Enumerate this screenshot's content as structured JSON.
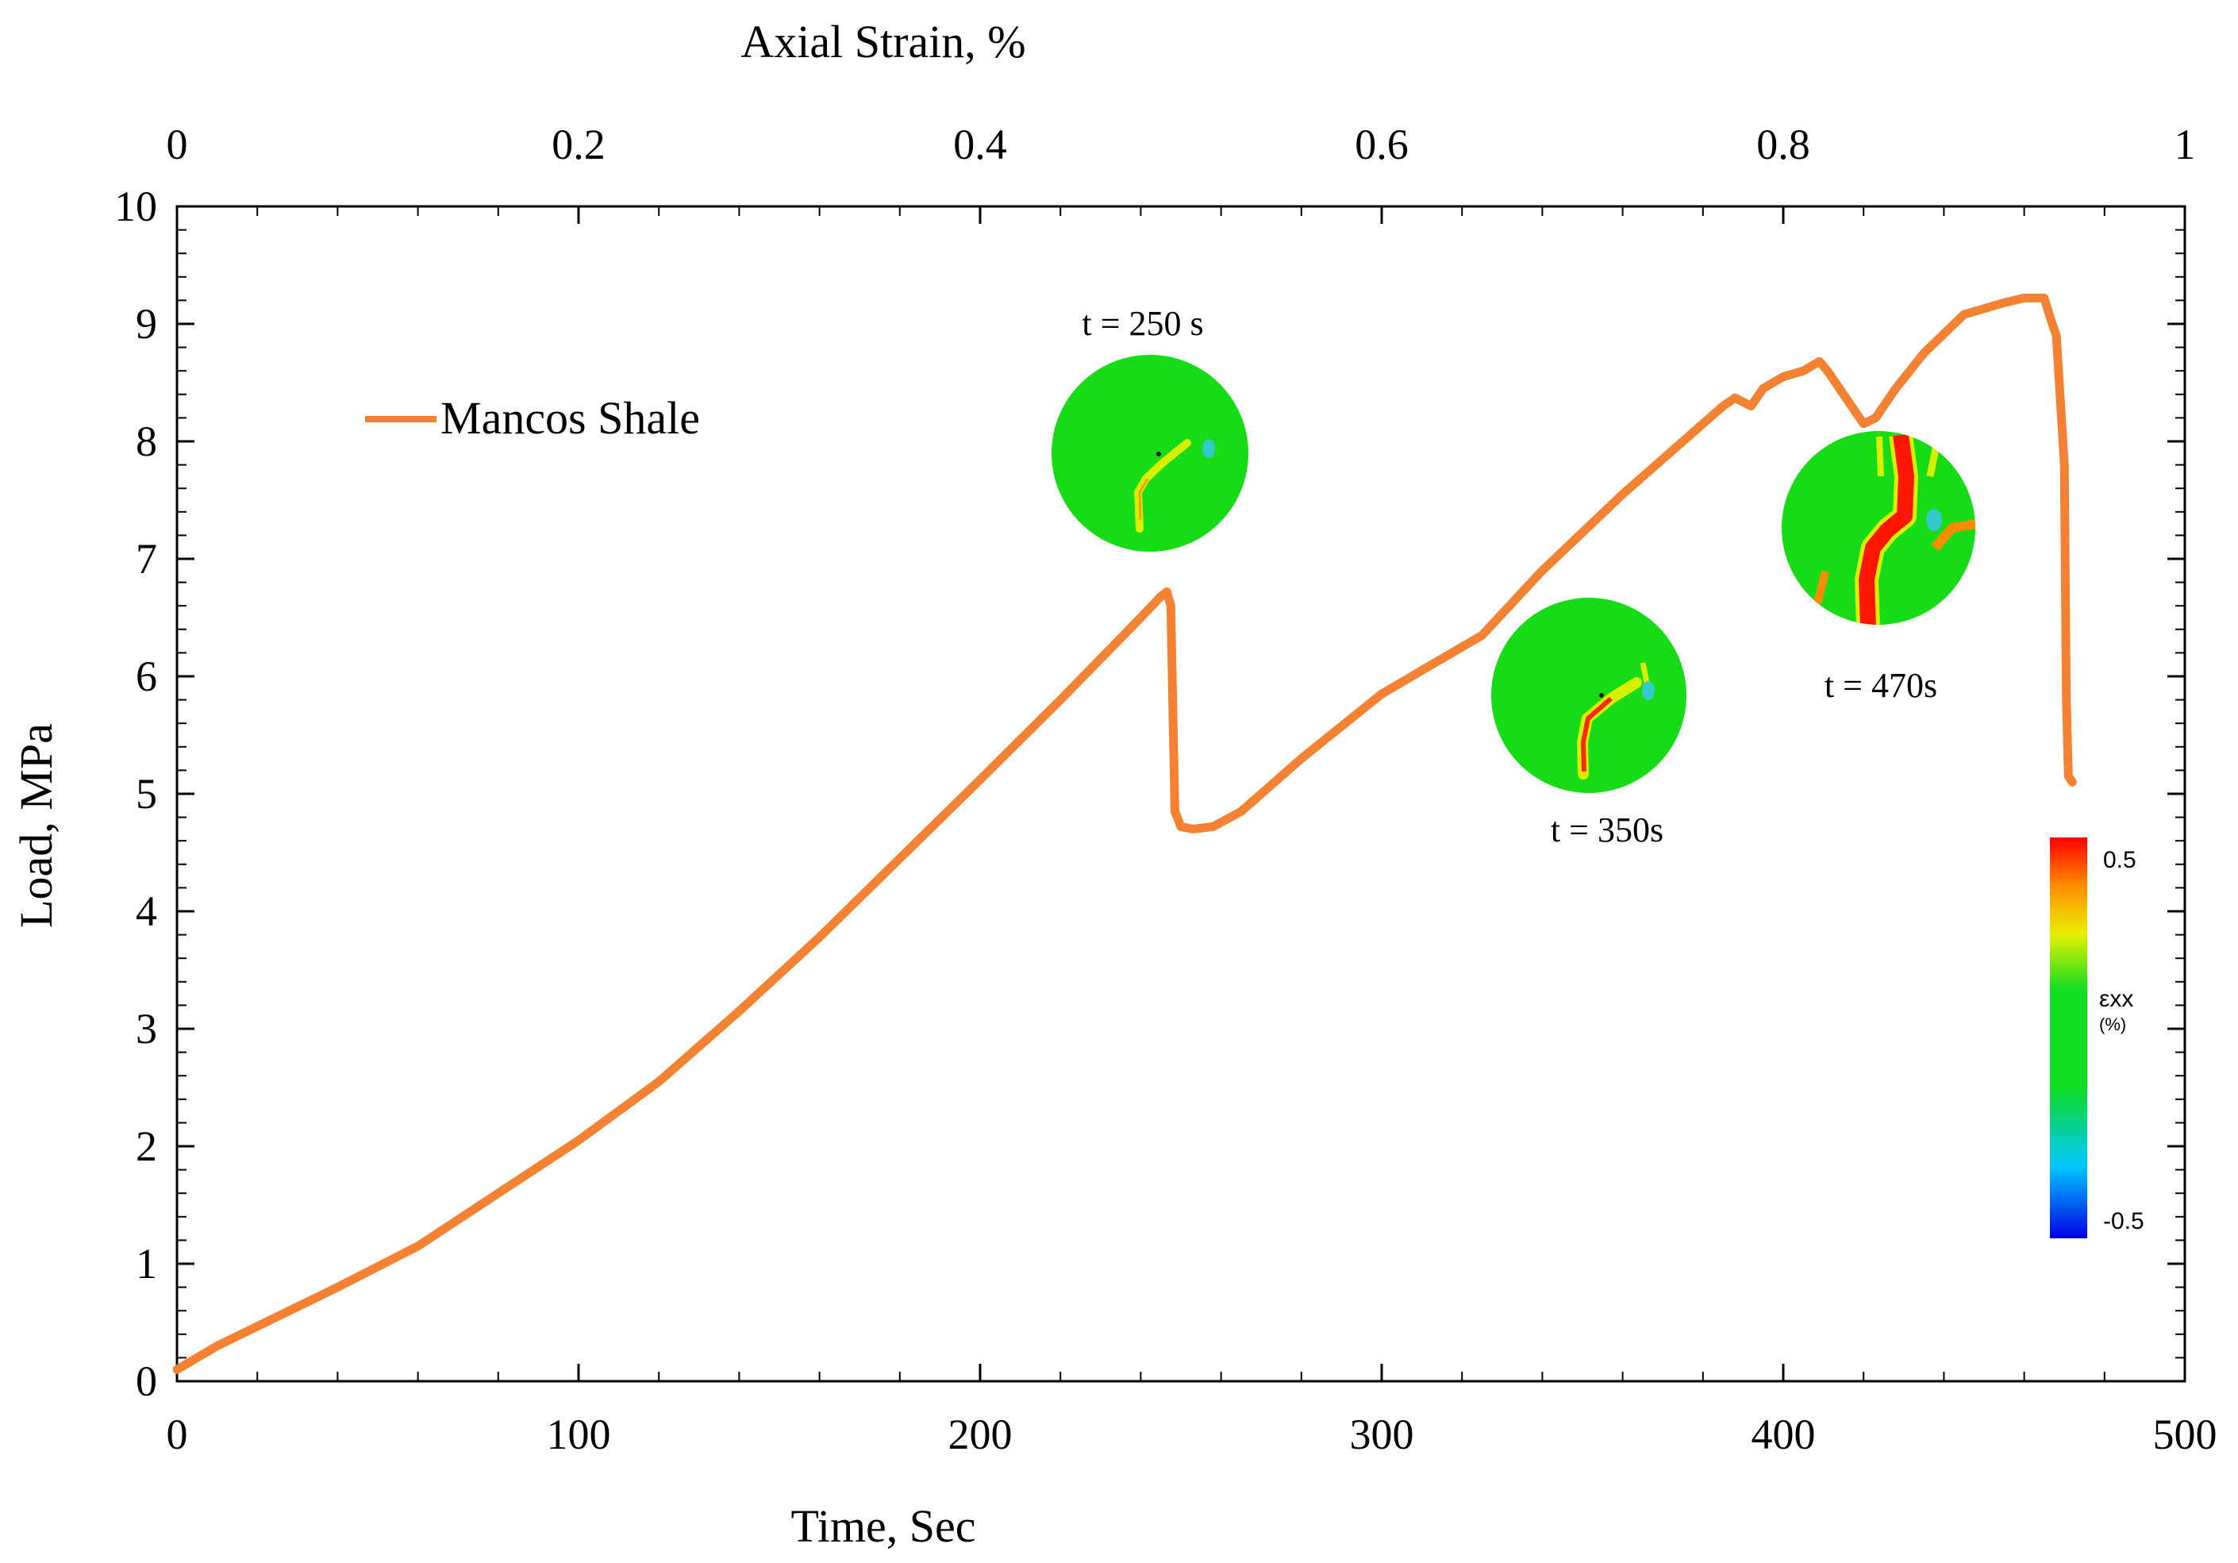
{
  "chart_data": {
    "type": "line",
    "title": "",
    "xlabel": "Time, Sec",
    "ylabel": "Load, MPa",
    "x2label": "Axial Strain, %",
    "xlim": [
      0,
      500
    ],
    "ylim": [
      0,
      10
    ],
    "x2lim": [
      0,
      1
    ],
    "xticks": [
      0,
      100,
      200,
      300,
      400,
      500
    ],
    "yticks": [
      0,
      1,
      2,
      3,
      4,
      5,
      6,
      7,
      8,
      9,
      10
    ],
    "x2ticks": [
      0,
      0.2,
      0.4,
      0.6,
      0.8,
      1
    ],
    "xtick_labels": [
      "0",
      "100",
      "200",
      "300",
      "400",
      "500"
    ],
    "ytick_labels": [
      "0",
      "1",
      "2",
      "3",
      "4",
      "5",
      "6",
      "7",
      "8",
      "9",
      "10"
    ],
    "x2tick_labels": [
      "0",
      "0.2",
      "0.4",
      "0.6",
      "0.8",
      "1"
    ],
    "grid": false,
    "legend_position": "top-left",
    "series": [
      {
        "name": "Mancos Shale",
        "color": "#F58232",
        "x": [
          0,
          10,
          25,
          40,
          60,
          80,
          100,
          120,
          140,
          160,
          180,
          200,
          220,
          240,
          245,
          246.5,
          247.5,
          248.5,
          250,
          253,
          258,
          265,
          280,
          300,
          325,
          340,
          360,
          375,
          385,
          388,
          392,
          395,
          400,
          405,
          409,
          411,
          414,
          417,
          420,
          423,
          428,
          435,
          445,
          455,
          460,
          465,
          466.5,
          468,
          470,
          470.5,
          471,
          472
        ],
        "y": [
          0.1,
          0.3,
          0.55,
          0.8,
          1.15,
          1.6,
          2.05,
          2.55,
          3.15,
          3.78,
          4.45,
          5.12,
          5.8,
          6.5,
          6.68,
          6.72,
          6.6,
          4.85,
          4.72,
          4.7,
          4.72,
          4.85,
          5.3,
          5.85,
          6.35,
          6.9,
          7.55,
          8.0,
          8.3,
          8.37,
          8.3,
          8.45,
          8.55,
          8.6,
          8.68,
          8.6,
          8.45,
          8.3,
          8.15,
          8.2,
          8.45,
          8.75,
          9.08,
          9.18,
          9.22,
          9.22,
          9.05,
          8.9,
          7.8,
          5.8,
          5.15,
          5.1
        ]
      }
    ],
    "annotations": [
      {
        "text": "t = 250 s",
        "x": 242,
        "y": 9.03,
        "anchor": "middle"
      },
      {
        "text": "t = 350s",
        "x": 354,
        "y": 4.7,
        "anchor": "middle"
      },
      {
        "text": "t = 470s",
        "x": 424,
        "y": 5.7,
        "anchor": "middle"
      }
    ],
    "snapshots": [
      {
        "label": "t = 250 s",
        "cx": 242,
        "cy": 7.9
      },
      {
        "label": "t = 350s",
        "cx": 352,
        "cy": 5.8
      },
      {
        "label": "t = 470s",
        "cx": 424,
        "cy": 7.25
      }
    ],
    "colorbar": {
      "max_label": "0.5",
      "min_label": "-0.5",
      "quantity_label": "εxx",
      "unit_label": "(%)",
      "colors": [
        "#0000e6",
        "#00c8ff",
        "#11dd22",
        "#11dd22",
        "#e8f000",
        "#ff8c00",
        "#ff0000"
      ]
    }
  }
}
